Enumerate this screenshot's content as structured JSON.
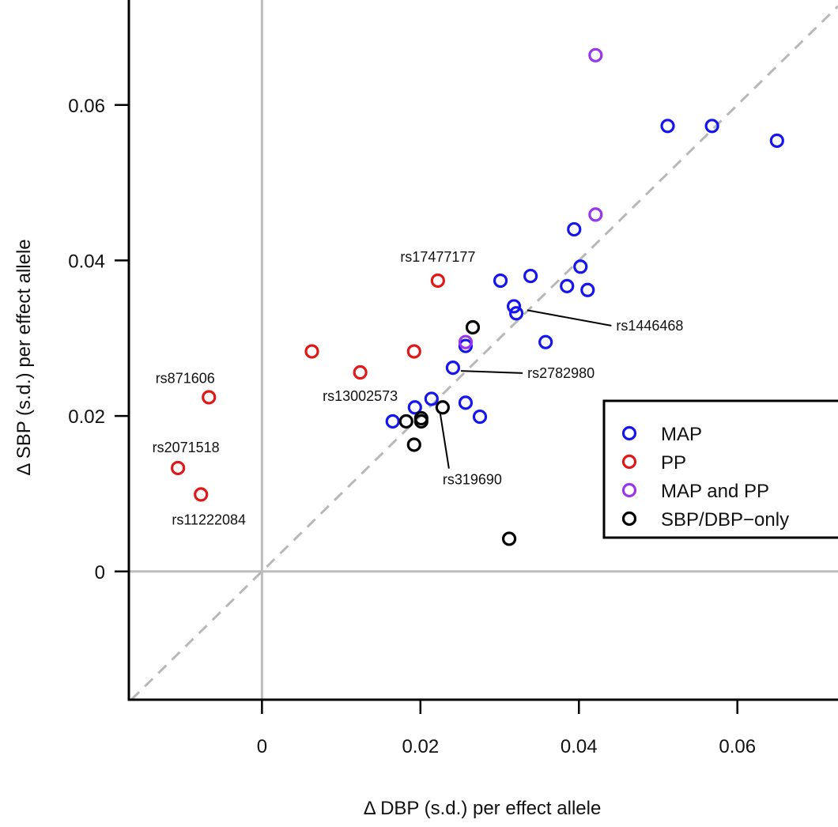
{
  "chart_data": {
    "type": "scatter",
    "xlabel": "Δ DBP (s.d.) per effect allele",
    "ylabel": "Δ SBP (s.d.) per effect allele",
    "xlim": [
      -0.0168,
      0.0727
    ],
    "ylim": [
      -0.0165,
      0.0735
    ],
    "x_ticks": [
      0,
      0.02,
      0.04,
      0.06
    ],
    "x_tick_labels": [
      "0",
      "0.02",
      "0.04",
      "0.06"
    ],
    "y_ticks": [
      0,
      0.02,
      0.04,
      0.06
    ],
    "y_tick_labels": [
      "0",
      "0.02",
      "0.04",
      "0.06"
    ],
    "reference_lines": {
      "x_zero": true,
      "y_zero": true,
      "identity_dashed": true
    },
    "grid": false,
    "legend_position": "right",
    "series": [
      {
        "name": "MAP",
        "color": "#1515f0",
        "points": [
          [
            0.0165,
            0.0193
          ],
          [
            0.0193,
            0.0211
          ],
          [
            0.0214,
            0.0222
          ],
          [
            0.0241,
            0.0262
          ],
          [
            0.0257,
            0.0217
          ],
          [
            0.0275,
            0.0199
          ],
          [
            0.0257,
            0.029
          ],
          [
            0.0301,
            0.0374
          ],
          [
            0.0318,
            0.0341
          ],
          [
            0.0321,
            0.0332
          ],
          [
            0.0339,
            0.038
          ],
          [
            0.0358,
            0.0295
          ],
          [
            0.0385,
            0.0367
          ],
          [
            0.0394,
            0.044
          ],
          [
            0.0402,
            0.0392
          ],
          [
            0.0411,
            0.0362
          ],
          [
            0.0512,
            0.0573
          ],
          [
            0.0568,
            0.0573
          ],
          [
            0.065,
            0.0554
          ]
        ]
      },
      {
        "name": "PP",
        "color": "#e01818",
        "points": [
          [
            0.0063,
            0.0283
          ],
          [
            0.0124,
            0.0256
          ],
          [
            0.0192,
            0.0283
          ],
          [
            0.0222,
            0.0374
          ],
          [
            -0.0067,
            0.0224
          ],
          [
            -0.0106,
            0.0133
          ],
          [
            -0.0077,
            0.0099
          ]
        ]
      },
      {
        "name": "MAP and PP",
        "color": "#9a35ee",
        "points": [
          [
            0.0421,
            0.0664
          ],
          [
            0.0421,
            0.0459
          ],
          [
            0.0257,
            0.0295
          ]
        ]
      },
      {
        "name": "SBP/DBP−only",
        "color": "#000000",
        "points": [
          [
            0.0182,
            0.0193
          ],
          [
            0.0201,
            0.0193
          ],
          [
            0.0201,
            0.0197
          ],
          [
            0.0228,
            0.0211
          ],
          [
            0.0192,
            0.0163
          ],
          [
            0.0266,
            0.0314
          ],
          [
            0.0312,
            0.0042
          ]
        ]
      }
    ],
    "annotations": [
      {
        "text": "rs17477177",
        "x": 0.0222,
        "y": 0.0374,
        "leader": false
      },
      {
        "text": "rs1446468",
        "x": 0.0325,
        "y": 0.034,
        "leader": true
      },
      {
        "text": "rs2782980",
        "x": 0.0241,
        "y": 0.0262,
        "leader": true
      },
      {
        "text": "rs13002573",
        "x": 0.0124,
        "y": 0.0256,
        "leader": false
      },
      {
        "text": "rs871606",
        "x": -0.0067,
        "y": 0.0224,
        "leader": false
      },
      {
        "text": "rs2071518",
        "x": -0.0106,
        "y": 0.0133,
        "leader": false
      },
      {
        "text": "rs11222084",
        "x": -0.0077,
        "y": 0.0099,
        "leader": false
      },
      {
        "text": "rs319690",
        "x": 0.0215,
        "y": 0.0207,
        "leader": true
      }
    ]
  }
}
